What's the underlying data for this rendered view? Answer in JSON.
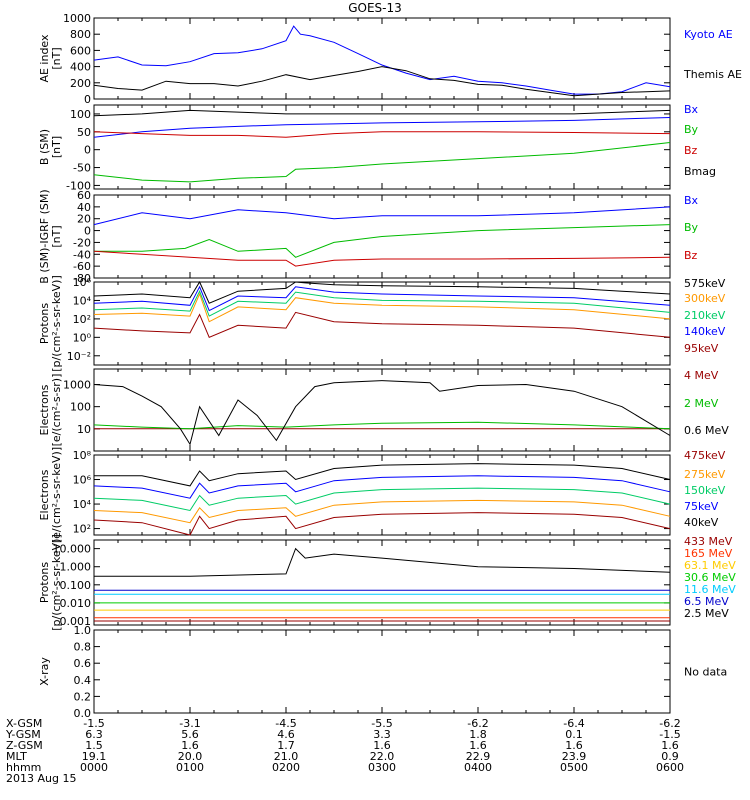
{
  "title": "GOES-13",
  "footer": {
    "rows": [
      {
        "label": "X-GSM",
        "values": [
          "-1.5",
          "-3.1",
          "-4.5",
          "-5.5",
          "-6.2",
          "-6.4",
          "-6.2"
        ]
      },
      {
        "label": "Y-GSM",
        "values": [
          "6.3",
          "5.6",
          "4.6",
          "3.3",
          "1.8",
          "0.1",
          "-1.5"
        ]
      },
      {
        "label": "Z-GSM",
        "values": [
          "1.5",
          "1.6",
          "1.7",
          "1.6",
          "1.6",
          "1.6",
          "1.6"
        ]
      },
      {
        "label": "MLT",
        "values": [
          "19.1",
          "20.0",
          "21.0",
          "22.0",
          "22.9",
          "23.9",
          "0.9"
        ]
      },
      {
        "label": "hhmm",
        "values": [
          "0000",
          "0100",
          "0200",
          "0300",
          "0400",
          "0500",
          "0600"
        ]
      }
    ],
    "date": "2013 Aug 15"
  },
  "chart_data": [
    {
      "type": "line",
      "ylabel": [
        "AE index",
        "[nT]"
      ],
      "yscale": "linear",
      "ylim": [
        0,
        1000
      ],
      "yticks": [
        0,
        200,
        400,
        600,
        800,
        1000
      ],
      "yticklabels": [
        "0",
        "200",
        "400",
        "600",
        "800",
        "1000"
      ],
      "series": [
        {
          "name": "Kyoto AE",
          "color": "#0000ff",
          "x": [
            0,
            0.25,
            0.5,
            0.75,
            1.0,
            1.25,
            1.5,
            1.75,
            2.0,
            2.08,
            2.15,
            2.25,
            2.5,
            2.75,
            3.0,
            3.25,
            3.5,
            3.75,
            4.0,
            4.25,
            4.5,
            4.75,
            5.0,
            5.25,
            5.5,
            5.75,
            6.0
          ],
          "y": [
            480,
            520,
            420,
            410,
            460,
            560,
            570,
            620,
            720,
            900,
            800,
            780,
            700,
            560,
            420,
            320,
            240,
            280,
            220,
            200,
            160,
            110,
            60,
            60,
            90,
            200,
            150
          ]
        },
        {
          "name": "Themis AE",
          "color": "#000000",
          "x": [
            0,
            0.25,
            0.5,
            0.75,
            1.0,
            1.25,
            1.5,
            1.75,
            2.0,
            2.25,
            2.5,
            2.75,
            3.0,
            3.25,
            3.5,
            3.75,
            4.0,
            4.25,
            4.5,
            4.75,
            5.0,
            5.25,
            5.5,
            5.75,
            6.0
          ],
          "y": [
            170,
            130,
            110,
            220,
            190,
            190,
            160,
            220,
            300,
            240,
            290,
            340,
            400,
            350,
            250,
            230,
            180,
            170,
            120,
            80,
            40,
            60,
            80,
            90,
            100
          ]
        }
      ]
    },
    {
      "type": "line",
      "ylabel": [
        "B (SM)",
        "[nT]"
      ],
      "yscale": "linear",
      "ylim": [
        -110,
        125
      ],
      "yticks": [
        -100,
        -50,
        0,
        50,
        100
      ],
      "yticklabels": [
        "-100",
        "-50",
        "0",
        "50",
        "100"
      ],
      "series": [
        {
          "name": "Bx",
          "color": "#0000ff",
          "x": [
            0,
            0.5,
            1.0,
            1.5,
            2.0,
            2.5,
            3.0,
            4.0,
            5.0,
            6.0
          ],
          "y": [
            35,
            50,
            60,
            65,
            70,
            72,
            75,
            78,
            82,
            90
          ]
        },
        {
          "name": "By",
          "color": "#00bb00",
          "x": [
            0,
            0.5,
            1.0,
            1.5,
            2.0,
            2.1,
            2.5,
            3.0,
            4.0,
            5.0,
            6.0
          ],
          "y": [
            -70,
            -85,
            -90,
            -80,
            -75,
            -55,
            -50,
            -40,
            -25,
            -10,
            20
          ]
        },
        {
          "name": "Bz",
          "color": "#cc0000",
          "x": [
            0,
            0.5,
            1.0,
            1.5,
            2.0,
            2.5,
            3.0,
            4.0,
            5.0,
            6.0
          ],
          "y": [
            50,
            45,
            40,
            40,
            35,
            45,
            50,
            50,
            48,
            45
          ]
        },
        {
          "name": "Bmag",
          "color": "#000000",
          "x": [
            0,
            0.5,
            1.0,
            1.5,
            2.0,
            2.5,
            3.0,
            4.0,
            5.0,
            6.0
          ],
          "y": [
            95,
            100,
            110,
            105,
            100,
            100,
            100,
            100,
            100,
            110
          ]
        }
      ]
    },
    {
      "type": "line",
      "ylabel": [
        "B (SM)-IGRF (SM)",
        "[nT]"
      ],
      "yscale": "linear",
      "ylim": [
        -80,
        60
      ],
      "yticks": [
        -80,
        -60,
        -40,
        -20,
        0,
        20,
        40,
        60
      ],
      "yticklabels": [
        "-80",
        "-60",
        "-40",
        "-20",
        "0",
        "20",
        "40",
        "60"
      ],
      "series": [
        {
          "name": "Bx",
          "color": "#0000ff",
          "x": [
            0,
            0.5,
            1.0,
            1.5,
            2.0,
            2.5,
            3.0,
            4.0,
            5.0,
            6.0
          ],
          "y": [
            10,
            30,
            20,
            35,
            30,
            20,
            25,
            25,
            30,
            40
          ]
        },
        {
          "name": "By",
          "color": "#00bb00",
          "x": [
            0,
            0.5,
            0.95,
            1.2,
            1.5,
            2.0,
            2.1,
            2.5,
            3.0,
            4.0,
            5.0,
            6.0
          ],
          "y": [
            -35,
            -35,
            -30,
            -15,
            -35,
            -30,
            -45,
            -20,
            -10,
            0,
            5,
            10
          ]
        },
        {
          "name": "Bz",
          "color": "#cc0000",
          "x": [
            0,
            0.5,
            1.0,
            1.5,
            2.0,
            2.1,
            2.5,
            3.0,
            4.0,
            5.0,
            6.0
          ],
          "y": [
            -35,
            -40,
            -45,
            -50,
            -50,
            -60,
            -50,
            -48,
            -48,
            -47,
            -45
          ]
        }
      ]
    },
    {
      "type": "line",
      "ylabel": [
        "Protons",
        "[p/(cm²-s-sr-keV)]"
      ],
      "yscale": "log",
      "ylim": [
        0.001,
        1000000
      ],
      "yticks": [
        0.01,
        1,
        100,
        10000,
        1000000
      ],
      "yticklabels": [
        "10⁻²",
        "10⁰",
        "10²",
        "10⁴",
        "10⁶"
      ],
      "series": [
        {
          "name": "575keV",
          "color": "#000000",
          "x": [
            0,
            0.5,
            1.0,
            1.1,
            1.2,
            1.5,
            2.0,
            2.1,
            2.2,
            2.5,
            3.0,
            4.0,
            5.0,
            5.5,
            6.0
          ],
          "y": [
            30000,
            50000,
            20000,
            1000000,
            5000,
            100000,
            200000,
            1000000,
            800000,
            500000,
            400000,
            300000,
            200000,
            100000,
            50000
          ]
        },
        {
          "name": "300keV",
          "color": "#ff9900",
          "x": [
            0,
            0.5,
            1.0,
            1.1,
            1.2,
            1.5,
            2.0,
            2.1,
            2.5,
            3.0,
            4.0,
            5.0,
            6.0
          ],
          "y": [
            300,
            400,
            200,
            50000,
            50,
            2000,
            1000,
            20000,
            5000,
            3000,
            2000,
            1000,
            100
          ]
        },
        {
          "name": "210keV",
          "color": "#00cc66",
          "x": [
            0,
            0.5,
            1.0,
            1.1,
            1.2,
            1.5,
            2.0,
            2.1,
            2.5,
            3.0,
            4.0,
            5.0,
            6.0
          ],
          "y": [
            1000,
            1500,
            700,
            100000,
            200,
            8000,
            5000,
            80000,
            20000,
            10000,
            8000,
            5000,
            500
          ]
        },
        {
          "name": "140keV",
          "color": "#0000ff",
          "x": [
            0,
            0.5,
            1.0,
            1.1,
            1.2,
            1.5,
            2.0,
            2.1,
            2.5,
            3.0,
            4.0,
            5.0,
            6.0
          ],
          "y": [
            5000,
            8000,
            3000,
            300000,
            800,
            30000,
            20000,
            300000,
            80000,
            50000,
            30000,
            20000,
            3000
          ]
        },
        {
          "name": "95keV",
          "color": "#990000",
          "x": [
            0,
            0.5,
            1.0,
            1.1,
            1.2,
            1.5,
            2.0,
            2.1,
            2.5,
            3.0,
            4.0,
            5.0,
            6.0
          ],
          "y": [
            10,
            5,
            3,
            300,
            1,
            20,
            10,
            500,
            50,
            30,
            20,
            10,
            1
          ]
        }
      ]
    },
    {
      "type": "line",
      "ylabel": [
        "Electrons",
        "[e/(cm²-s-sr)]"
      ],
      "yscale": "log",
      "ylim": [
        1,
        5000
      ],
      "yticks": [
        10,
        100,
        1000
      ],
      "yticklabels": [
        "10",
        "100",
        "1000"
      ],
      "series": [
        {
          "name": "4 MeV",
          "color": "#990000",
          "x": [
            0,
            1,
            2,
            3,
            4,
            5,
            6
          ],
          "y": [
            10,
            10,
            10,
            10,
            10,
            10,
            10
          ]
        },
        {
          "name": "2 MeV",
          "color": "#00bb00",
          "x": [
            0,
            0.5,
            1.0,
            1.5,
            2.0,
            2.5,
            3.0,
            4.0,
            5.0,
            6.0
          ],
          "y": [
            15,
            12,
            10,
            14,
            12,
            15,
            18,
            20,
            15,
            10
          ]
        },
        {
          "name": "0.6 MeV",
          "color": "#000000",
          "x": [
            0,
            0.3,
            0.5,
            0.7,
            0.9,
            1.0,
            1.1,
            1.3,
            1.5,
            1.7,
            1.9,
            2.1,
            2.3,
            2.5,
            3.0,
            3.5,
            3.6,
            4.0,
            4.5,
            5.0,
            5.5,
            6.0
          ],
          "y": [
            1000,
            800,
            300,
            100,
            10,
            2,
            100,
            5,
            200,
            40,
            3,
            100,
            800,
            1200,
            1500,
            1200,
            500,
            900,
            1000,
            500,
            100,
            5
          ]
        }
      ]
    },
    {
      "type": "line",
      "ylabel": [
        "Electrons",
        "[e/(cm²-s-sr-keV)]"
      ],
      "yscale": "log",
      "ylim": [
        30,
        100000000
      ],
      "yticks": [
        100,
        10000,
        1000000,
        100000000
      ],
      "yticklabels": [
        "10²",
        "10⁴",
        "10⁶",
        "10⁸"
      ],
      "series": [
        {
          "name": "475keV",
          "color": "#990000",
          "x": [
            0,
            0.5,
            1.0,
            1.1,
            1.2,
            1.5,
            2.0,
            2.1,
            2.5,
            3.0,
            4.0,
            5.0,
            5.5,
            6.0
          ],
          "y": [
            500,
            300,
            30,
            1000,
            100,
            500,
            1000,
            100,
            800,
            1500,
            2000,
            1500,
            800,
            100
          ]
        },
        {
          "name": "275keV",
          "color": "#ff9900",
          "x": [
            0,
            0.5,
            1.0,
            1.1,
            1.2,
            1.5,
            2.0,
            2.1,
            2.5,
            3.0,
            4.0,
            5.0,
            5.5,
            6.0
          ],
          "y": [
            3000,
            2000,
            300,
            5000,
            800,
            3000,
            5000,
            1000,
            8000,
            15000,
            20000,
            15000,
            8000,
            1000
          ]
        },
        {
          "name": "150keV",
          "color": "#00cc66",
          "x": [
            0,
            0.5,
            1.0,
            1.1,
            1.2,
            1.5,
            2.0,
            2.1,
            2.5,
            3.0,
            4.0,
            5.0,
            5.5,
            6.0
          ],
          "y": [
            30000,
            20000,
            3000,
            50000,
            8000,
            30000,
            50000,
            10000,
            80000,
            150000,
            200000,
            150000,
            80000,
            10000
          ]
        },
        {
          "name": "75keV",
          "color": "#0000ff",
          "x": [
            0,
            0.5,
            1.0,
            1.1,
            1.2,
            1.5,
            2.0,
            2.1,
            2.5,
            3.0,
            4.0,
            5.0,
            5.5,
            6.0
          ],
          "y": [
            300000,
            200000,
            30000,
            500000,
            80000,
            300000,
            500000,
            100000,
            800000,
            1500000,
            2000000,
            1500000,
            800000,
            100000
          ]
        },
        {
          "name": "40keV",
          "color": "#000000",
          "x": [
            0,
            0.5,
            1.0,
            1.1,
            1.2,
            1.5,
            2.0,
            2.1,
            2.5,
            3.0,
            4.0,
            5.0,
            5.5,
            6.0
          ],
          "y": [
            2000000,
            2000000,
            300000,
            5000000,
            800000,
            3000000,
            5000000,
            1000000,
            8000000,
            15000000,
            20000000,
            15000000,
            8000000,
            1000000
          ]
        }
      ]
    },
    {
      "type": "line",
      "ylabel": [
        "Protons",
        "[p/(cm²-s-sr-keV)]"
      ],
      "yscale": "log",
      "ylim": [
        0.0006,
        30
      ],
      "yticks": [
        0.001,
        0.01,
        0.1,
        1,
        10
      ],
      "yticklabels": [
        "0.001",
        "0.010",
        "0.100",
        "1.000",
        "10.000"
      ],
      "series": [
        {
          "name": "433 MeV",
          "color": "#990000",
          "x": [
            0,
            6
          ],
          "y": [
            0.001,
            0.001
          ]
        },
        {
          "name": "165 MeV",
          "color": "#ff3300",
          "x": [
            0,
            6
          ],
          "y": [
            0.0015,
            0.0015
          ]
        },
        {
          "name": "63.1 MeV",
          "color": "#ffcc00",
          "x": [
            0,
            6
          ],
          "y": [
            0.004,
            0.004
          ]
        },
        {
          "name": "30.6 MeV",
          "color": "#00cc00",
          "x": [
            0,
            6
          ],
          "y": [
            0.01,
            0.01
          ]
        },
        {
          "name": "11.6 MeV",
          "color": "#00ccff",
          "x": [
            0,
            6
          ],
          "y": [
            0.03,
            0.03
          ]
        },
        {
          "name": "6.5 MeV",
          "color": "#0000cc",
          "x": [
            0,
            6
          ],
          "y": [
            0.05,
            0.05
          ]
        },
        {
          "name": "2.5 MeV",
          "color": "#000000",
          "x": [
            0,
            1.0,
            2.0,
            2.1,
            2.2,
            2.5,
            3.0,
            4.0,
            5.0,
            6.0
          ],
          "y": [
            0.3,
            0.3,
            0.4,
            10,
            3,
            5,
            3,
            1,
            0.8,
            0.5
          ]
        }
      ]
    },
    {
      "type": "line",
      "ylabel": [
        "X-ray",
        ""
      ],
      "yscale": "linear",
      "ylim": [
        0,
        1
      ],
      "yticks": [
        0,
        0.2,
        0.4,
        0.6,
        0.8,
        1.0
      ],
      "yticklabels": [
        "0.0",
        "0.2",
        "0.4",
        "0.6",
        "0.8",
        "1.0"
      ],
      "note": "No data",
      "series": []
    }
  ]
}
